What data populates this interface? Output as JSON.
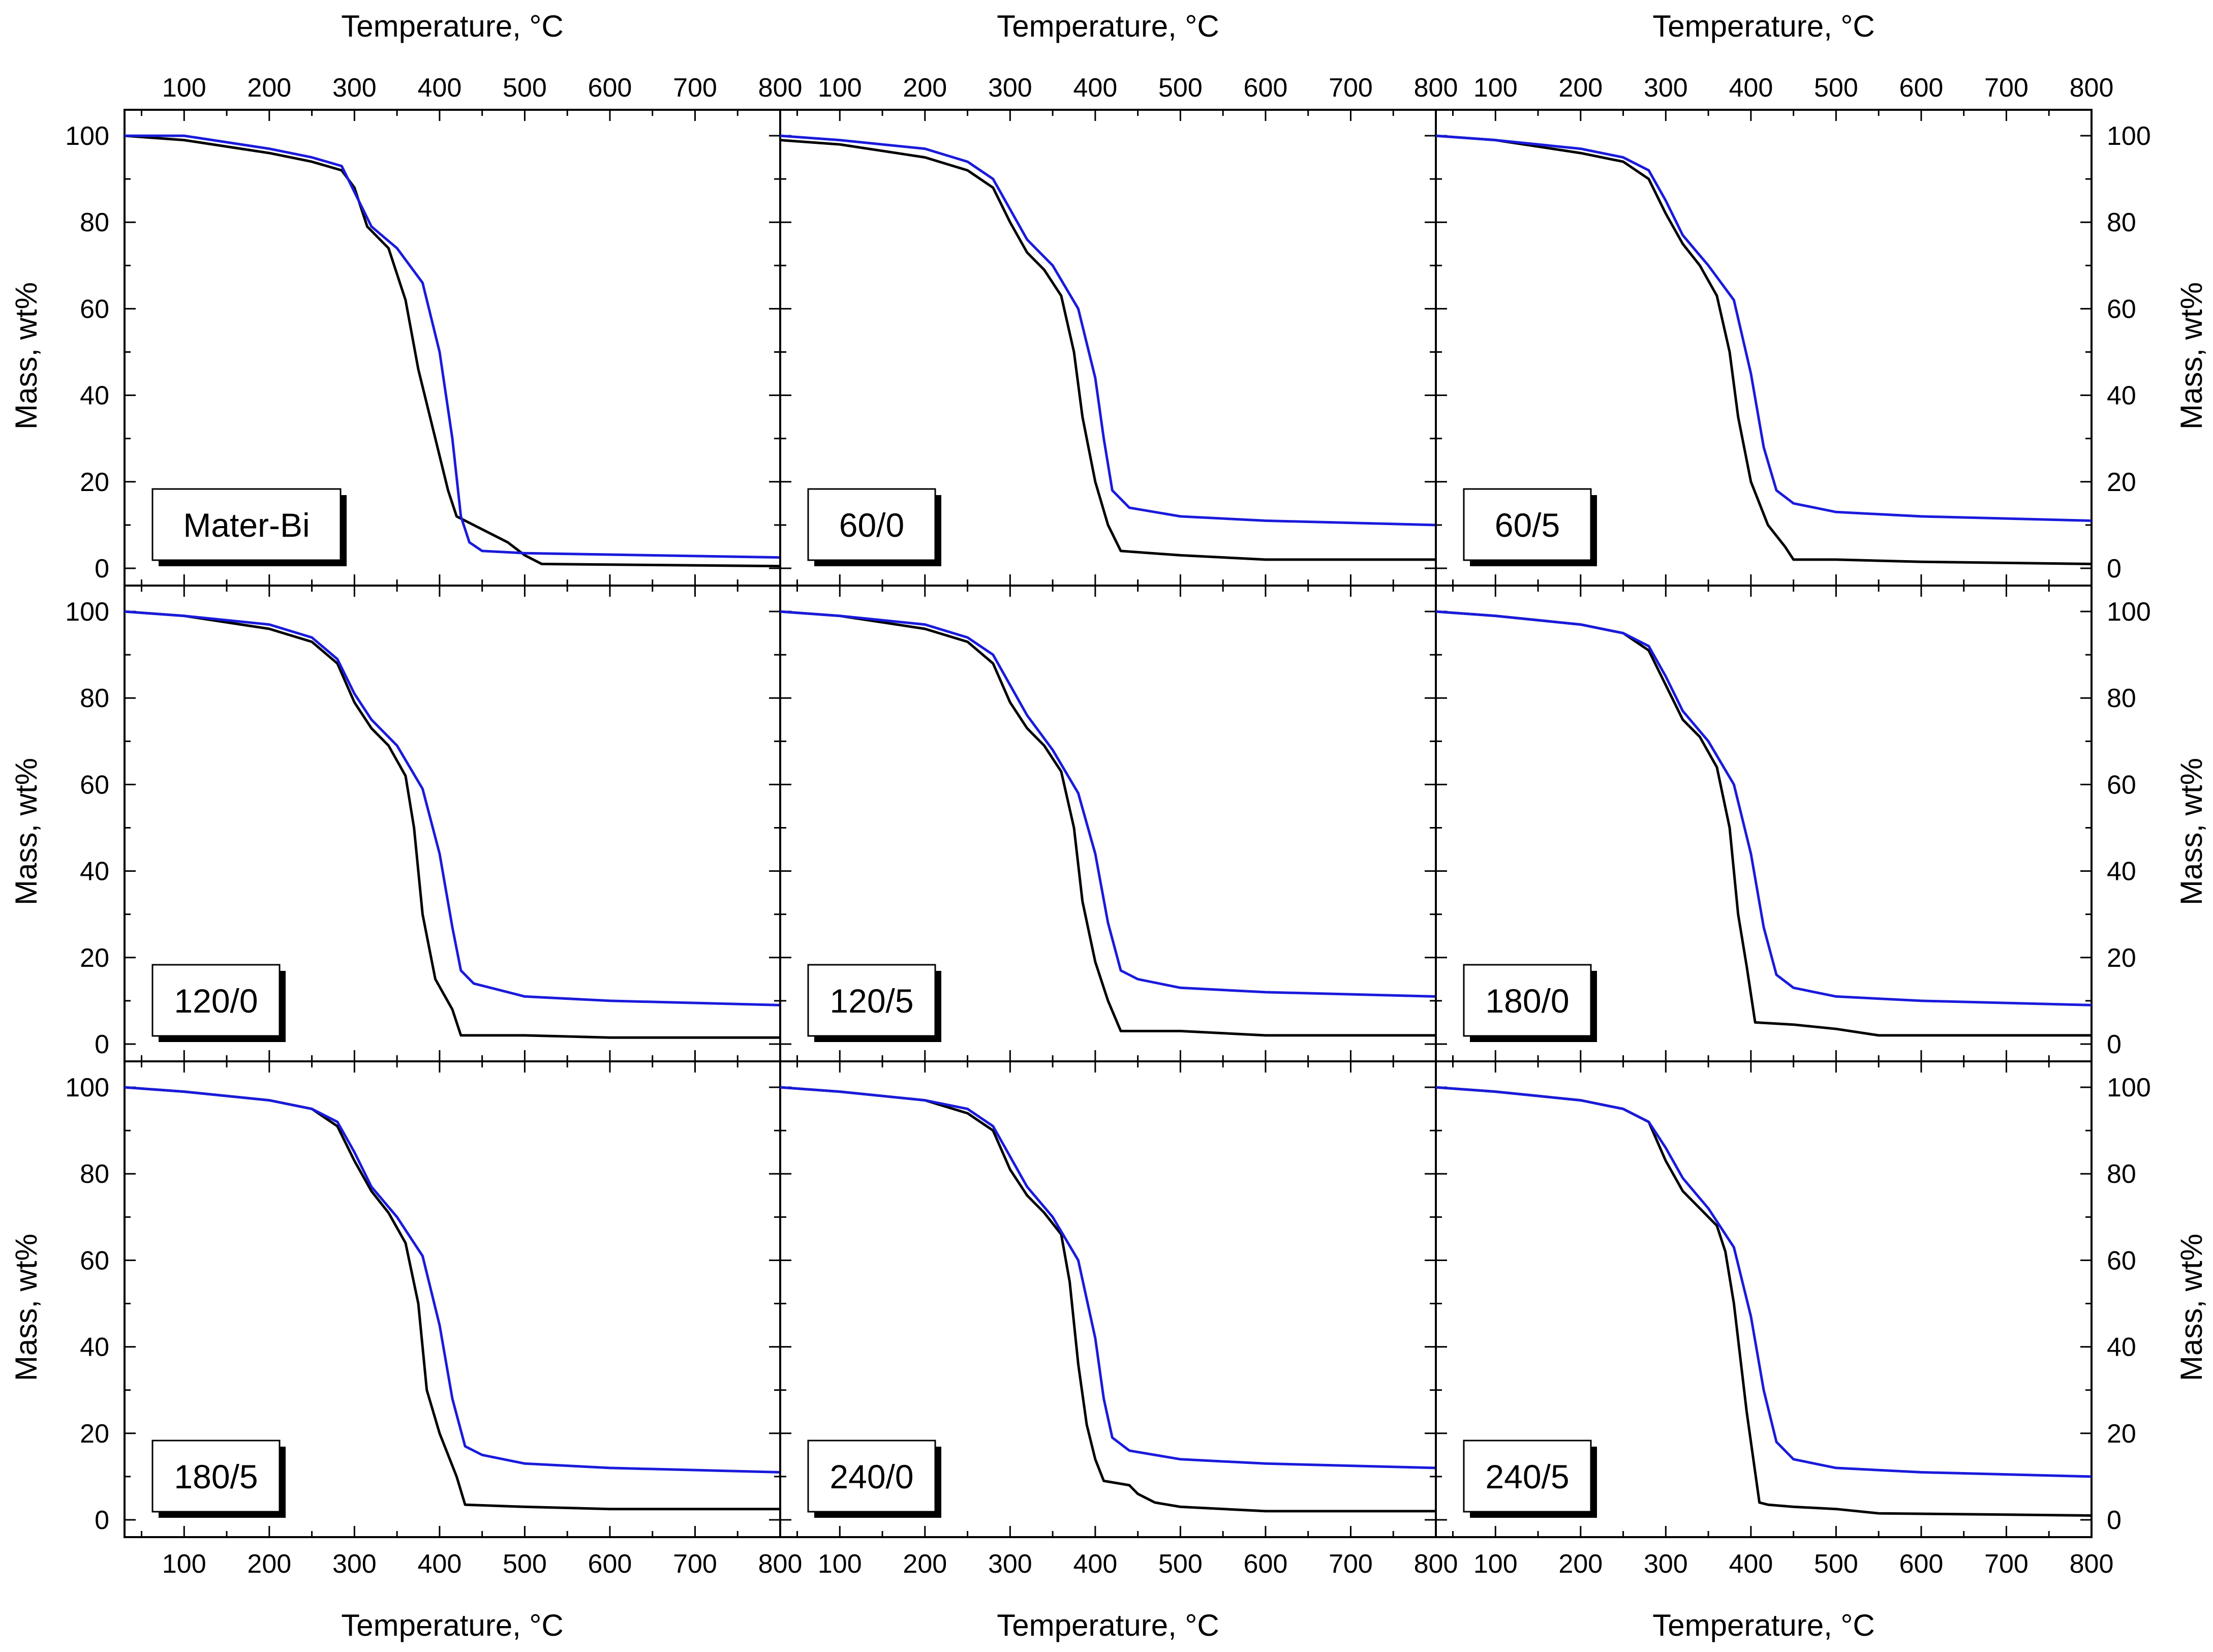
{
  "figure": {
    "x_axis_title": "Temperature, °C",
    "y_axis_title": "Mass, wt%",
    "series_colors": {
      "sample_a": "#000000",
      "sample_b": "#1a1adc"
    }
  },
  "chart_data": [
    {
      "type": "line",
      "label": "Mater-Bi",
      "xlabel": "Temperature, °C",
      "ylabel": "Mass, wt%",
      "xlim": [
        30,
        800
      ],
      "ylim": [
        -4,
        106
      ],
      "x_ticks": [
        100,
        200,
        300,
        400,
        500,
        600,
        700,
        800
      ],
      "y_ticks": [
        0,
        20,
        40,
        60,
        80,
        100
      ],
      "series": [
        {
          "name": "black",
          "color": "#000000",
          "x": [
            30,
            100,
            200,
            250,
            285,
            300,
            315,
            340,
            360,
            375,
            395,
            410,
            420,
            450,
            480,
            500,
            520,
            800
          ],
          "y": [
            100,
            99,
            96,
            94,
            92,
            88,
            79,
            74,
            62,
            46,
            30,
            18,
            12,
            9,
            6,
            3,
            1,
            0.5
          ]
        },
        {
          "name": "blue",
          "color": "#1a1adc",
          "x": [
            30,
            100,
            200,
            250,
            285,
            300,
            320,
            350,
            380,
            400,
            415,
            425,
            435,
            450,
            500,
            800
          ],
          "y": [
            100,
            100,
            97,
            95,
            93,
            87,
            79,
            74,
            66,
            50,
            30,
            12,
            6,
            4,
            3.5,
            2.5
          ]
        }
      ]
    },
    {
      "type": "line",
      "label": "60/0",
      "xlabel": "Temperature, °C",
      "ylabel": "Mass, wt%",
      "xlim": [
        30,
        800
      ],
      "ylim": [
        -4,
        106
      ],
      "x_ticks": [
        100,
        200,
        300,
        400,
        500,
        600,
        700,
        800
      ],
      "y_ticks": [
        0,
        20,
        40,
        60,
        80,
        100
      ],
      "series": [
        {
          "name": "black",
          "color": "#000000",
          "x": [
            30,
            100,
            200,
            250,
            280,
            300,
            320,
            340,
            360,
            375,
            385,
            400,
            415,
            430,
            500,
            600,
            800
          ],
          "y": [
            99,
            98,
            95,
            92,
            88,
            80,
            73,
            69,
            63,
            50,
            35,
            20,
            10,
            4,
            3,
            2,
            2
          ]
        },
        {
          "name": "blue",
          "color": "#1a1adc",
          "x": [
            30,
            100,
            200,
            250,
            280,
            300,
            320,
            350,
            380,
            400,
            410,
            420,
            440,
            500,
            600,
            800
          ],
          "y": [
            100,
            99,
            97,
            94,
            90,
            83,
            76,
            70,
            60,
            44,
            30,
            18,
            14,
            12,
            11,
            10
          ]
        }
      ]
    },
    {
      "type": "line",
      "label": "60/5",
      "xlabel": "Temperature, °C",
      "ylabel": "Mass, wt%",
      "xlim": [
        30,
        800
      ],
      "ylim": [
        -4,
        106
      ],
      "x_ticks": [
        100,
        200,
        300,
        400,
        500,
        600,
        700,
        800
      ],
      "y_ticks": [
        0,
        20,
        40,
        60,
        80,
        100
      ],
      "series": [
        {
          "name": "black",
          "color": "#000000",
          "x": [
            30,
            100,
            200,
            250,
            280,
            300,
            320,
            340,
            360,
            375,
            385,
            400,
            420,
            440,
            450,
            500,
            600,
            800
          ],
          "y": [
            100,
            99,
            96,
            94,
            90,
            82,
            75,
            70,
            63,
            50,
            35,
            20,
            10,
            5,
            2,
            2,
            1.5,
            1
          ]
        },
        {
          "name": "blue",
          "color": "#1a1adc",
          "x": [
            30,
            100,
            200,
            250,
            280,
            300,
            320,
            350,
            380,
            400,
            415,
            430,
            450,
            500,
            600,
            800
          ],
          "y": [
            100,
            99,
            97,
            95,
            92,
            85,
            77,
            70,
            62,
            45,
            28,
            18,
            15,
            13,
            12,
            11
          ]
        }
      ]
    },
    {
      "type": "line",
      "label": "120/0",
      "xlabel": "Temperature, °C",
      "ylabel": "Mass, wt%",
      "xlim": [
        30,
        800
      ],
      "ylim": [
        -4,
        106
      ],
      "x_ticks": [
        100,
        200,
        300,
        400,
        500,
        600,
        700,
        800
      ],
      "y_ticks": [
        0,
        20,
        40,
        60,
        80,
        100
      ],
      "series": [
        {
          "name": "black",
          "color": "#000000",
          "x": [
            30,
            100,
            200,
            250,
            280,
            300,
            320,
            340,
            360,
            370,
            380,
            395,
            415,
            425,
            500,
            600,
            800
          ],
          "y": [
            100,
            99,
            96,
            93,
            88,
            79,
            73,
            69,
            62,
            50,
            30,
            15,
            8,
            2,
            2,
            1.5,
            1.5
          ]
        },
        {
          "name": "blue",
          "color": "#1a1adc",
          "x": [
            30,
            100,
            200,
            250,
            280,
            300,
            320,
            350,
            380,
            400,
            415,
            425,
            440,
            500,
            600,
            800
          ],
          "y": [
            100,
            99,
            97,
            94,
            89,
            81,
            75,
            69,
            59,
            44,
            27,
            17,
            14,
            11,
            10,
            9
          ]
        }
      ]
    },
    {
      "type": "line",
      "label": "120/5",
      "xlabel": "Temperature, °C",
      "ylabel": "Mass, wt%",
      "xlim": [
        30,
        800
      ],
      "ylim": [
        -4,
        106
      ],
      "x_ticks": [
        100,
        200,
        300,
        400,
        500,
        600,
        700,
        800
      ],
      "y_ticks": [
        0,
        20,
        40,
        60,
        80,
        100
      ],
      "series": [
        {
          "name": "black",
          "color": "#000000",
          "x": [
            30,
            100,
            200,
            250,
            280,
            300,
            320,
            340,
            360,
            375,
            385,
            400,
            415,
            430,
            500,
            600,
            800
          ],
          "y": [
            100,
            99,
            96,
            93,
            88,
            79,
            73,
            69,
            63,
            50,
            33,
            19,
            10,
            3,
            3,
            2,
            2
          ]
        },
        {
          "name": "blue",
          "color": "#1a1adc",
          "x": [
            30,
            100,
            200,
            250,
            280,
            300,
            320,
            350,
            380,
            400,
            415,
            430,
            450,
            500,
            600,
            800
          ],
          "y": [
            100,
            99,
            97,
            94,
            90,
            83,
            76,
            68,
            58,
            44,
            28,
            17,
            15,
            13,
            12,
            11
          ]
        }
      ]
    },
    {
      "type": "line",
      "label": "180/0",
      "xlabel": "Temperature, °C",
      "ylabel": "Mass, wt%",
      "xlim": [
        30,
        800
      ],
      "ylim": [
        -4,
        106
      ],
      "x_ticks": [
        100,
        200,
        300,
        400,
        500,
        600,
        700,
        800
      ],
      "y_ticks": [
        0,
        20,
        40,
        60,
        80,
        100
      ],
      "series": [
        {
          "name": "black",
          "color": "#000000",
          "x": [
            30,
            100,
            200,
            250,
            280,
            300,
            320,
            340,
            360,
            375,
            385,
            395,
            405,
            450,
            500,
            550,
            800
          ],
          "y": [
            100,
            99,
            97,
            95,
            91,
            83,
            75,
            71,
            64,
            50,
            30,
            18,
            5,
            4.5,
            3.5,
            2,
            2
          ]
        },
        {
          "name": "blue",
          "color": "#1a1adc",
          "x": [
            30,
            100,
            200,
            250,
            280,
            300,
            320,
            350,
            380,
            400,
            415,
            430,
            450,
            500,
            600,
            800
          ],
          "y": [
            100,
            99,
            97,
            95,
            92,
            85,
            77,
            70,
            60,
            44,
            27,
            16,
            13,
            11,
            10,
            9
          ]
        }
      ]
    },
    {
      "type": "line",
      "label": "180/5",
      "xlabel": "Temperature, °C",
      "ylabel": "Mass, wt%",
      "xlim": [
        30,
        800
      ],
      "ylim": [
        -4,
        106
      ],
      "x_ticks": [
        100,
        200,
        300,
        400,
        500,
        600,
        700,
        800
      ],
      "y_ticks": [
        0,
        20,
        40,
        60,
        80,
        100
      ],
      "series": [
        {
          "name": "black",
          "color": "#000000",
          "x": [
            30,
            100,
            200,
            250,
            280,
            300,
            320,
            340,
            360,
            375,
            385,
            400,
            420,
            430,
            500,
            600,
            800
          ],
          "y": [
            100,
            99,
            97,
            95,
            91,
            83,
            76,
            71,
            64,
            50,
            30,
            20,
            10,
            3.5,
            3,
            2.5,
            2.5
          ]
        },
        {
          "name": "blue",
          "color": "#1a1adc",
          "x": [
            30,
            100,
            200,
            250,
            280,
            300,
            320,
            350,
            380,
            400,
            415,
            430,
            450,
            500,
            600,
            800
          ],
          "y": [
            100,
            99,
            97,
            95,
            92,
            85,
            77,
            70,
            61,
            45,
            28,
            17,
            15,
            13,
            12,
            11
          ]
        }
      ]
    },
    {
      "type": "line",
      "label": "240/0",
      "xlabel": "Temperature, °C",
      "ylabel": "Mass, wt%",
      "xlim": [
        30,
        800
      ],
      "ylim": [
        -4,
        106
      ],
      "x_ticks": [
        100,
        200,
        300,
        400,
        500,
        600,
        700,
        800
      ],
      "y_ticks": [
        0,
        20,
        40,
        60,
        80,
        100
      ],
      "series": [
        {
          "name": "black",
          "color": "#000000",
          "x": [
            30,
            100,
            200,
            250,
            280,
            300,
            320,
            340,
            360,
            370,
            380,
            390,
            400,
            410,
            440,
            450,
            470,
            500,
            600,
            800
          ],
          "y": [
            100,
            99,
            97,
            94,
            90,
            81,
            75,
            71,
            66,
            55,
            36,
            22,
            14,
            9,
            8,
            6,
            4,
            3,
            2,
            2
          ]
        },
        {
          "name": "blue",
          "color": "#1a1adc",
          "x": [
            30,
            100,
            200,
            250,
            280,
            300,
            320,
            350,
            380,
            400,
            410,
            420,
            440,
            500,
            600,
            800
          ],
          "y": [
            100,
            99,
            97,
            95,
            91,
            84,
            77,
            70,
            60,
            42,
            28,
            19,
            16,
            14,
            13,
            12
          ]
        }
      ]
    },
    {
      "type": "line",
      "label": "240/5",
      "xlabel": "Temperature, °C",
      "ylabel": "Mass, wt%",
      "xlim": [
        30,
        800
      ],
      "ylim": [
        -4,
        106
      ],
      "x_ticks": [
        100,
        200,
        300,
        400,
        500,
        600,
        700,
        800
      ],
      "y_ticks": [
        0,
        20,
        40,
        60,
        80,
        100
      ],
      "series": [
        {
          "name": "black",
          "color": "#000000",
          "x": [
            30,
            100,
            200,
            250,
            280,
            300,
            320,
            340,
            360,
            370,
            380,
            395,
            410,
            420,
            450,
            500,
            550,
            800
          ],
          "y": [
            100,
            99,
            97,
            95,
            92,
            83,
            76,
            72,
            68,
            62,
            50,
            25,
            4,
            3.5,
            3,
            2.5,
            1.5,
            1
          ]
        },
        {
          "name": "blue",
          "color": "#1a1adc",
          "x": [
            30,
            100,
            200,
            250,
            280,
            300,
            320,
            350,
            380,
            400,
            415,
            430,
            450,
            500,
            600,
            800
          ],
          "y": [
            100,
            99,
            97,
            95,
            92,
            86,
            79,
            72,
            63,
            47,
            30,
            18,
            14,
            12,
            11,
            10
          ]
        }
      ]
    }
  ]
}
